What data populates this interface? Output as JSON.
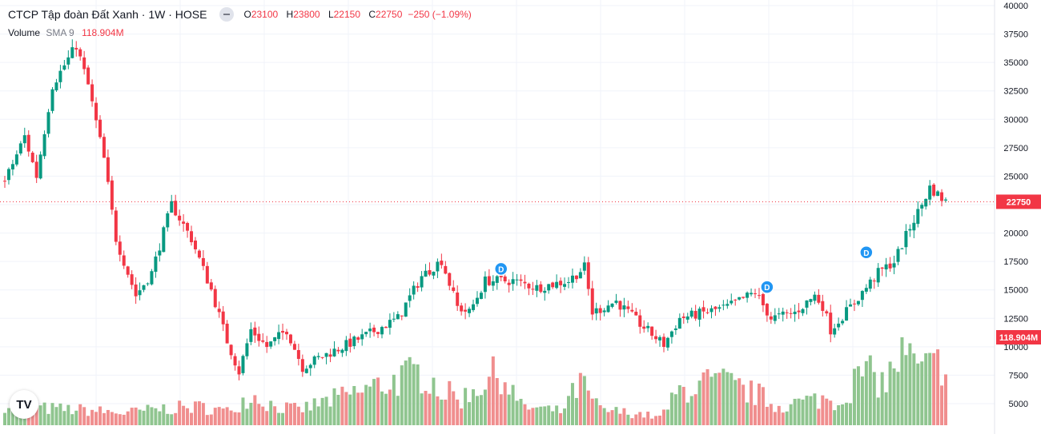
{
  "legend": {
    "title": "CTCP Tập đoàn Đất Xanh · 1W · HOSE",
    "o_label": "O",
    "o_value": "23100",
    "h_label": "H",
    "h_value": "23800",
    "l_label": "L",
    "l_value": "22150",
    "c_label": "C",
    "c_value": "22750",
    "change": "−250 (−1.09%)"
  },
  "volume_legend": {
    "name": "Volume",
    "sma": "SMA 9",
    "value": "118.904M"
  },
  "logo": {
    "text": "TV"
  },
  "colors": {
    "up": "#089981",
    "down": "#f23645",
    "vol_up": "#8fc58f",
    "vol_down": "#f08e8e",
    "grid": "#f0f3fa",
    "last": "#f23645"
  },
  "chart_data": {
    "type": "candlestick",
    "price_axis": {
      "ticks": [
        5000,
        7500,
        10000,
        12500,
        15000,
        17500,
        20000,
        22500,
        25000,
        27500,
        30000,
        32500,
        35000,
        37500,
        40000
      ],
      "range": [
        3000,
        40000
      ]
    },
    "volume_axis_max": 110000000,
    "last_price": 22750,
    "last_price_label": "22750",
    "last_volume": 118904000,
    "last_volume_label": "118.904M",
    "dividend_markers": [
      {
        "label": "D",
        "bar": 125,
        "price": 16850
      },
      {
        "label": "D",
        "bar": 192,
        "price": 15250
      },
      {
        "label": "D",
        "bar": 217,
        "price": 18300
      }
    ],
    "anchors": [
      [
        0,
        24500
      ],
      [
        5,
        28500
      ],
      [
        8,
        25000
      ],
      [
        12,
        33000
      ],
      [
        18,
        36500
      ],
      [
        21,
        33000
      ],
      [
        25,
        26500
      ],
      [
        28,
        19500
      ],
      [
        33,
        14500
      ],
      [
        37,
        16500
      ],
      [
        42,
        22500
      ],
      [
        47,
        19500
      ],
      [
        52,
        15000
      ],
      [
        56,
        10500
      ],
      [
        59,
        7800
      ],
      [
        62,
        11500
      ],
      [
        66,
        10000
      ],
      [
        71,
        11500
      ],
      [
        75,
        8200
      ],
      [
        79,
        9000
      ],
      [
        85,
        10000
      ],
      [
        91,
        11000
      ],
      [
        99,
        12500
      ],
      [
        105,
        16200
      ],
      [
        110,
        17600
      ],
      [
        114,
        13500
      ],
      [
        117,
        13000
      ],
      [
        121,
        15800
      ],
      [
        128,
        15800
      ],
      [
        134,
        15200
      ],
      [
        142,
        15800
      ],
      [
        146,
        17000
      ],
      [
        148,
        13000
      ],
      [
        154,
        14000
      ],
      [
        160,
        12000
      ],
      [
        166,
        10200
      ],
      [
        170,
        12500
      ],
      [
        176,
        13000
      ],
      [
        182,
        13500
      ],
      [
        189,
        14800
      ],
      [
        193,
        12500
      ],
      [
        199,
        13000
      ],
      [
        204,
        14500
      ],
      [
        206,
        13600
      ],
      [
        208,
        11500
      ],
      [
        213,
        13500
      ],
      [
        220,
        16500
      ],
      [
        224,
        17500
      ],
      [
        228,
        20500
      ],
      [
        231,
        22500
      ],
      [
        233,
        24000
      ],
      [
        237,
        22750
      ]
    ],
    "volume_anchors": [
      [
        0,
        28
      ],
      [
        10,
        22
      ],
      [
        20,
        20
      ],
      [
        30,
        16
      ],
      [
        40,
        22
      ],
      [
        50,
        24
      ],
      [
        56,
        18
      ],
      [
        62,
        40
      ],
      [
        68,
        25
      ],
      [
        74,
        20
      ],
      [
        80,
        30
      ],
      [
        90,
        45
      ],
      [
        100,
        62
      ],
      [
        106,
        70
      ],
      [
        110,
        45
      ],
      [
        115,
        35
      ],
      [
        120,
        55
      ],
      [
        125,
        70
      ],
      [
        130,
        25
      ],
      [
        140,
        18
      ],
      [
        145,
        55
      ],
      [
        150,
        20
      ],
      [
        160,
        15
      ],
      [
        165,
        10
      ],
      [
        170,
        45
      ],
      [
        176,
        55
      ],
      [
        182,
        55
      ],
      [
        186,
        45
      ],
      [
        190,
        40
      ],
      [
        194,
        25
      ],
      [
        200,
        30
      ],
      [
        206,
        35
      ],
      [
        210,
        30
      ],
      [
        216,
        70
      ],
      [
        222,
        55
      ],
      [
        226,
        100
      ],
      [
        230,
        70
      ],
      [
        234,
        75
      ],
      [
        237,
        90
      ]
    ]
  }
}
